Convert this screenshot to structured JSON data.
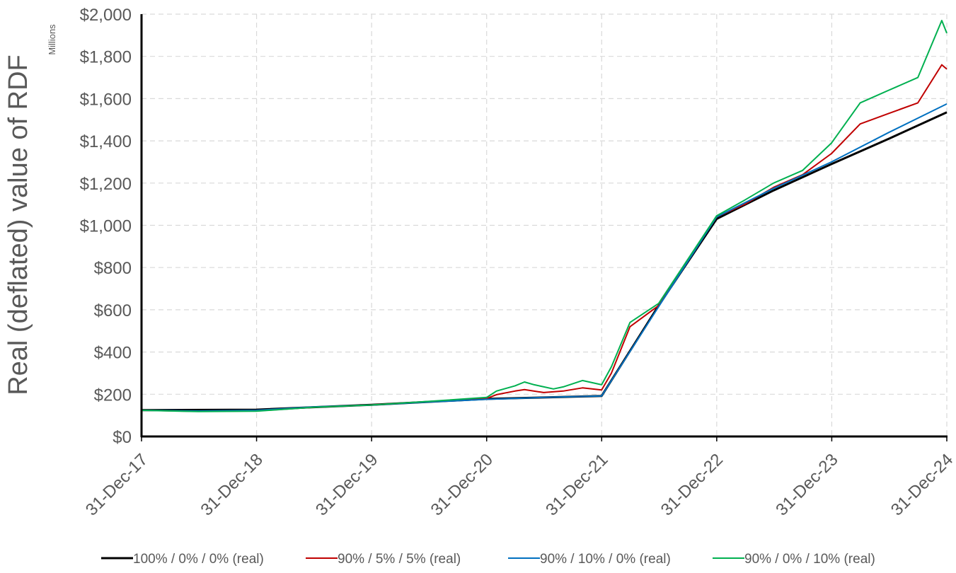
{
  "chart_data": {
    "type": "line",
    "title": "",
    "ylabel": "Real (deflated) value of RDF",
    "yunit": "Millions",
    "xlabel": "",
    "ylim": [
      0,
      2000
    ],
    "yticks": [
      0,
      200,
      400,
      600,
      800,
      1000,
      1200,
      1400,
      1600,
      1800,
      2000
    ],
    "ytick_labels": [
      "$0",
      "$200",
      "$400",
      "$600",
      "$800",
      "$1,000",
      "$1,200",
      "$1,400",
      "$1,600",
      "$1,800",
      "$2,000"
    ],
    "xlim": [
      "2017-12-31",
      "2024-12-31"
    ],
    "xtick_labels": [
      "31-Dec-17",
      "31-Dec-18",
      "31-Dec-19",
      "31-Dec-20",
      "31-Dec-21",
      "31-Dec-22",
      "31-Dec-23",
      "31-Dec-24"
    ],
    "grid": true,
    "legend_position": "bottom",
    "series": [
      {
        "name": "100% / 0% / 0% (real)",
        "color": "#000000",
        "points": [
          [
            "2017-12-31",
            125
          ],
          [
            "2018-12-31",
            127
          ],
          [
            "2019-12-31",
            150
          ],
          [
            "2020-12-31",
            178
          ],
          [
            "2021-12-31",
            192
          ],
          [
            "2022-06-30",
            620
          ],
          [
            "2022-12-31",
            1030
          ],
          [
            "2023-06-30",
            1165
          ],
          [
            "2023-12-31",
            1290
          ],
          [
            "2024-06-30",
            1410
          ],
          [
            "2024-12-31",
            1535
          ]
        ]
      },
      {
        "name": "90% / 5% / 5% (real)",
        "color": "#C00000",
        "points": [
          [
            "2017-12-31",
            124
          ],
          [
            "2018-06-30",
            119
          ],
          [
            "2018-12-31",
            121
          ],
          [
            "2019-06-30",
            138
          ],
          [
            "2019-12-31",
            150
          ],
          [
            "2020-06-30",
            165
          ],
          [
            "2020-12-31",
            180
          ],
          [
            "2021-01-31",
            198
          ],
          [
            "2021-03-31",
            215
          ],
          [
            "2021-04-30",
            222
          ],
          [
            "2021-06-30",
            208
          ],
          [
            "2021-08-31",
            215
          ],
          [
            "2021-10-31",
            230
          ],
          [
            "2021-12-31",
            220
          ],
          [
            "2022-01-31",
            300
          ],
          [
            "2022-03-31",
            520
          ],
          [
            "2022-06-30",
            620
          ],
          [
            "2022-12-31",
            1040
          ],
          [
            "2023-03-31",
            1100
          ],
          [
            "2023-06-30",
            1180
          ],
          [
            "2023-09-30",
            1240
          ],
          [
            "2023-12-31",
            1340
          ],
          [
            "2024-03-31",
            1480
          ],
          [
            "2024-06-30",
            1530
          ],
          [
            "2024-09-30",
            1580
          ],
          [
            "2024-12-15",
            1760
          ],
          [
            "2024-12-31",
            1740
          ]
        ]
      },
      {
        "name": "90% / 10% / 0% (real)",
        "color": "#0070C0",
        "points": [
          [
            "2017-12-31",
            124
          ],
          [
            "2018-06-30",
            121
          ],
          [
            "2018-12-31",
            124
          ],
          [
            "2019-06-30",
            140
          ],
          [
            "2019-12-31",
            149
          ],
          [
            "2020-06-30",
            163
          ],
          [
            "2020-12-31",
            176
          ],
          [
            "2021-06-30",
            185
          ],
          [
            "2021-12-31",
            192
          ],
          [
            "2022-06-30",
            615
          ],
          [
            "2022-12-31",
            1040
          ],
          [
            "2023-06-30",
            1175
          ],
          [
            "2023-12-31",
            1300
          ],
          [
            "2024-06-30",
            1440
          ],
          [
            "2024-12-31",
            1575
          ]
        ]
      },
      {
        "name": "90% / 0% / 10% (real)",
        "color": "#00B050",
        "points": [
          [
            "2017-12-31",
            124
          ],
          [
            "2018-06-30",
            118
          ],
          [
            "2018-12-31",
            120
          ],
          [
            "2019-06-30",
            138
          ],
          [
            "2019-12-31",
            149
          ],
          [
            "2020-06-30",
            166
          ],
          [
            "2020-12-31",
            185
          ],
          [
            "2021-01-31",
            215
          ],
          [
            "2021-03-31",
            240
          ],
          [
            "2021-04-30",
            258
          ],
          [
            "2021-05-31",
            245
          ],
          [
            "2021-07-31",
            225
          ],
          [
            "2021-08-31",
            235
          ],
          [
            "2021-10-31",
            265
          ],
          [
            "2021-12-31",
            245
          ],
          [
            "2022-01-31",
            330
          ],
          [
            "2022-03-31",
            540
          ],
          [
            "2022-06-30",
            630
          ],
          [
            "2022-12-31",
            1045
          ],
          [
            "2023-03-31",
            1120
          ],
          [
            "2023-06-30",
            1200
          ],
          [
            "2023-09-30",
            1260
          ],
          [
            "2023-12-31",
            1390
          ],
          [
            "2024-03-31",
            1580
          ],
          [
            "2024-06-30",
            1640
          ],
          [
            "2024-09-30",
            1700
          ],
          [
            "2024-12-15",
            1970
          ],
          [
            "2024-12-31",
            1910
          ]
        ]
      }
    ]
  }
}
